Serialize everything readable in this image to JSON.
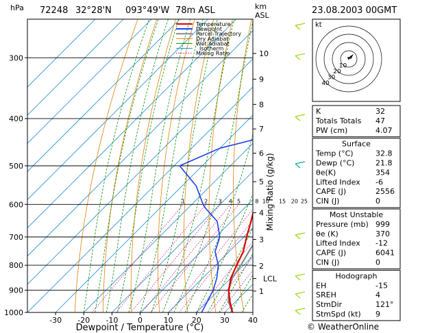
{
  "header": {
    "hpa_unit": "hPa",
    "station": "72248",
    "lat": "32°28'N",
    "lon": "093°49'W",
    "elev": "78m ASL",
    "km_unit": "km",
    "asl_unit": "ASL",
    "datetime": "23.08.2003 00GMT"
  },
  "chart_data": {
    "type": "line",
    "xlabel": "Dewpoint / Temperature (°C)",
    "ylabel": "Mixing Ratio (g/kg)",
    "xlim": [
      -40,
      40
    ],
    "ylim_hpa": [
      1000,
      250
    ],
    "skew_deg_per_decade_hpa": 1,
    "x_ticks": [
      "-30",
      "-20",
      "-10",
      "0",
      "10",
      "20",
      "30",
      "40"
    ],
    "pressure_ticks": [
      300,
      400,
      500,
      600,
      700,
      800,
      900,
      1000
    ],
    "km_ticks": [
      {
        "label": "10",
        "p": 294
      },
      {
        "label": "9",
        "p": 332
      },
      {
        "label": "8",
        "p": 374
      },
      {
        "label": "7",
        "p": 420
      },
      {
        "label": "6",
        "p": 471
      },
      {
        "label": "5",
        "p": 539
      },
      {
        "label": "4",
        "p": 624
      },
      {
        "label": "3",
        "p": 708
      },
      {
        "label": "2",
        "p": 802
      },
      {
        "label": "1",
        "p": 904
      }
    ],
    "lcl_label": "LCL",
    "lcl_p": 852,
    "mixing_ratio_labels": [
      "1",
      "2",
      "3",
      "4",
      "5",
      "8",
      "10",
      "15",
      "20",
      "25"
    ],
    "legend": [
      "Temperature",
      "Dewpoint",
      "Parcel Trajectory",
      "Dry Adiabat",
      "Wet Adiabat",
      "Isotherm",
      "Mixing Ratio"
    ],
    "series": [
      {
        "name": "Temperature",
        "points": [
          [
            1000,
            32.8
          ],
          [
            950,
            28
          ],
          [
            900,
            23.5
          ],
          [
            850,
            20
          ],
          [
            800,
            17.5
          ],
          [
            750,
            15
          ],
          [
            700,
            11
          ],
          [
            650,
            7
          ],
          [
            600,
            2.5
          ],
          [
            550,
            -2
          ],
          [
            500,
            -6.5
          ],
          [
            450,
            -12
          ],
          [
            400,
            -17.5
          ],
          [
            350,
            -24
          ],
          [
            300,
            -32.5
          ],
          [
            275,
            -38
          ],
          [
            250,
            -43
          ]
        ]
      },
      {
        "name": "Dewpoint",
        "points": [
          [
            1000,
            21.8
          ],
          [
            950,
            20
          ],
          [
            900,
            18
          ],
          [
            850,
            15
          ],
          [
            800,
            11
          ],
          [
            750,
            5
          ],
          [
            700,
            1.5
          ],
          [
            650,
            -5
          ],
          [
            610,
            -14
          ],
          [
            600,
            -16
          ],
          [
            550,
            -25
          ],
          [
            500,
            -38
          ],
          [
            460,
            -30
          ],
          [
            440,
            -20
          ],
          [
            420,
            -18
          ],
          [
            410,
            -16
          ],
          [
            400,
            -25
          ],
          [
            395,
            -18
          ],
          [
            370,
            -22
          ],
          [
            330,
            -30
          ],
          [
            300,
            -32
          ],
          [
            280,
            -35
          ],
          [
            250,
            -42
          ]
        ]
      },
      {
        "name": "Parcel Trajectory",
        "points": [
          [
            1000,
            32.8
          ],
          [
            950,
            27.5
          ],
          [
            900,
            23.5
          ],
          [
            850,
            20.5
          ],
          [
            800,
            19
          ],
          [
            750,
            17
          ],
          [
            700,
            15
          ],
          [
            650,
            12.5
          ],
          [
            600,
            9.5
          ],
          [
            550,
            6
          ],
          [
            500,
            2
          ],
          [
            450,
            -2.5
          ],
          [
            400,
            -8
          ],
          [
            350,
            -15
          ],
          [
            300,
            -24
          ],
          [
            250,
            -36
          ]
        ]
      }
    ],
    "indices": [
      {
        "label": "K",
        "value": "32"
      },
      {
        "label": "Totals Totals",
        "value": "47"
      },
      {
        "label": "PW (cm)",
        "value": "4.07"
      }
    ],
    "surface": {
      "title": "Surface",
      "rows": [
        {
          "label": "Temp (°C)",
          "value": "32.8"
        },
        {
          "label": "Dewp (°C)",
          "value": "21.8"
        },
        {
          "label": "θe(K)",
          "value": "354"
        },
        {
          "label": "Lifted Index",
          "value": "-6"
        },
        {
          "label": "CAPE (J)",
          "value": "2556"
        },
        {
          "label": "CIN (J)",
          "value": "0"
        }
      ]
    },
    "most_unstable": {
      "title": "Most Unstable",
      "rows": [
        {
          "label": "Pressure (mb)",
          "value": "999"
        },
        {
          "label": "θe (K)",
          "value": "370"
        },
        {
          "label": "Lifted Index",
          "value": "-12"
        },
        {
          "label": "CAPE (J)",
          "value": "6041"
        },
        {
          "label": "CIN (J)",
          "value": "0"
        }
      ]
    },
    "hodograph": {
      "title": "Hodograph",
      "rows": [
        {
          "label": "EH",
          "value": "-15"
        },
        {
          "label": "SREH",
          "value": "4"
        },
        {
          "label": "StmDir",
          "value": "121°"
        },
        {
          "label": "StmSpd (kt)",
          "value": "9"
        }
      ]
    },
    "hodo_unit": "kt",
    "hodo_ring_labels": [
      "10",
      "20",
      "30",
      "40"
    ]
  },
  "footer": {
    "copyright": "© WeatherOnline"
  },
  "colors": {
    "temperature": "#e00000",
    "dewpoint": "#1a3ee8",
    "parcel": "#888888",
    "dry_adiabat": "#e08000",
    "wet_adiabat": "#009000",
    "isotherm": "#2090d0",
    "mixing_ratio": "#d0008a",
    "wind_barb": "#98d800",
    "wind_barb_hl": "#00b090"
  }
}
